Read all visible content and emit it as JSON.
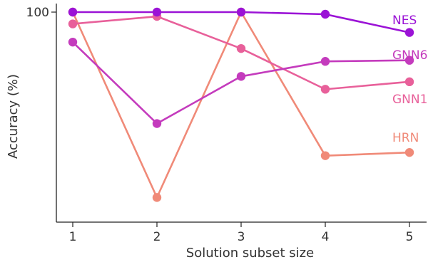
{
  "chart_data": {
    "type": "line",
    "xlabel": "Solution subset size",
    "ylabel": "Accuracy (%)",
    "x": [
      1,
      2,
      3,
      4,
      5
    ],
    "x_tick_labels": [
      "1",
      "2",
      "3",
      "4",
      "5"
    ],
    "y_tick_labels": [
      "100"
    ],
    "y_ticks": [
      100
    ],
    "xlim": [
      0.8,
      5.2
    ],
    "ylim": [
      0,
      101
    ],
    "grid": false,
    "legend": "inline-right",
    "series": [
      {
        "name": "HRN",
        "color": "#f08a78",
        "values": [
          100,
          13.5,
          100,
          33,
          34.5
        ]
      },
      {
        "name": "GNN1",
        "color": "#e8609a",
        "values": [
          94.5,
          98,
          83,
          64,
          67.5
        ]
      },
      {
        "name": "GNN6",
        "color": "#c43bbd",
        "values": [
          86,
          48,
          70,
          77,
          77.5
        ]
      },
      {
        "name": "NES",
        "color": "#9b13d6",
        "values": [
          100,
          100,
          100,
          99,
          90.5
        ]
      }
    ]
  }
}
